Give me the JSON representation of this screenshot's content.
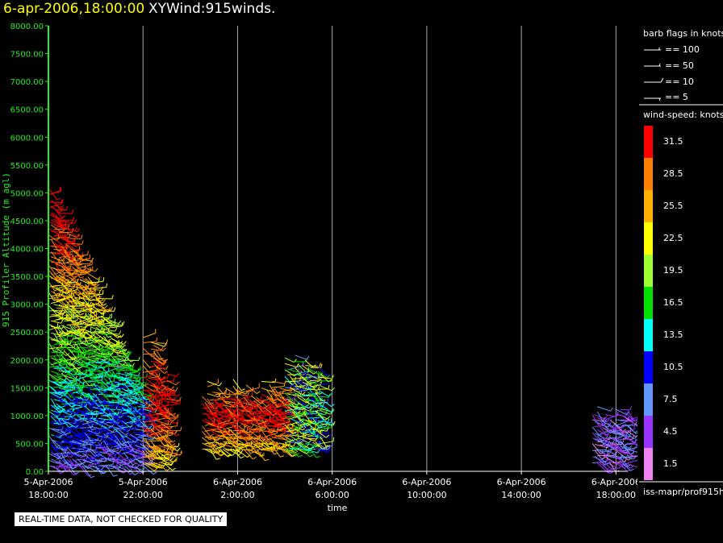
{
  "header": {
    "date_label": "6-apr-2006,18:00:00",
    "product_label": "XYWind:915winds."
  },
  "quality_note": "REAL-TIME DATA, NOT CHECKED FOR QUALITY",
  "legend": {
    "barb_title": "barb flags in knots",
    "barb_items": [
      "== 100",
      "== 50",
      "== 10",
      "== 5"
    ],
    "speed_title": "wind-speed: knots",
    "speed_bins": [
      {
        "label": "31.5",
        "color": "#ff0000"
      },
      {
        "label": "28.5",
        "color": "#ff7f00"
      },
      {
        "label": "25.5",
        "color": "#ffb000"
      },
      {
        "label": "22.5",
        "color": "#ffff00"
      },
      {
        "label": "19.5",
        "color": "#a0ff30"
      },
      {
        "label": "16.5",
        "color": "#00e000"
      },
      {
        "label": "13.5",
        "color": "#00ffff"
      },
      {
        "label": "10.5",
        "color": "#0000ff"
      },
      {
        "label": "7.5",
        "color": "#6496ff"
      },
      {
        "label": "4.5",
        "color": "#9933ff"
      },
      {
        "label": "1.5",
        "color": "#ee82ee"
      }
    ],
    "source": "iss-mapr/prof915h"
  },
  "chart_data": {
    "type": "scatter",
    "xlabel": "time",
    "ylabel": "915 Profiler Altitude (m agl)",
    "ylim": [
      0,
      8000
    ],
    "y_ticks": [
      "0.00",
      "500.00",
      "1000.00",
      "1500.00",
      "2000.00",
      "2500.00",
      "3000.00",
      "3500.00",
      "4000.00",
      "4500.00",
      "5000.00",
      "5500.00",
      "6000.00",
      "6500.00",
      "7000.00",
      "7500.00",
      "8000.00"
    ],
    "x_range_hours": [
      0,
      24.5
    ],
    "x_ticks": [
      {
        "date": "5-Apr-2006",
        "time": "18:00:00"
      },
      {
        "date": "5-Apr-2006",
        "time": "22:00:00"
      },
      {
        "date": "6-Apr-2006",
        "time": "2:00:00"
      },
      {
        "date": "6-Apr-2006",
        "time": "6:00:00"
      },
      {
        "date": "6-Apr-2006",
        "time": "10:00:00"
      },
      {
        "date": "6-Apr-2006",
        "time": "14:00:00"
      },
      {
        "date": "6-Apr-2006",
        "time": "18:00:00"
      }
    ],
    "grid": true,
    "profile_groups": [
      {
        "start": "5-Apr-2006 18:00",
        "end": "5-Apr-2006 22:00",
        "top_m": 5100,
        "bottom_m": 100
      },
      {
        "start": "5-Apr-2006 22:00",
        "end": "5-Apr-2006 23:00",
        "top_m": 2600,
        "bottom_m": 150
      },
      {
        "start": "6-Apr-2006 0:30",
        "end": "6-Apr-2006 4:00",
        "top_m": 1700,
        "bottom_m": 400
      },
      {
        "start": "6-Apr-2006 4:00",
        "end": "6-Apr-2006 5:30",
        "top_m": 2200,
        "bottom_m": 400
      },
      {
        "start": "6-Apr-2006 17:00",
        "end": "6-Apr-2006 18:30",
        "top_m": 1200,
        "bottom_m": 150
      }
    ]
  }
}
